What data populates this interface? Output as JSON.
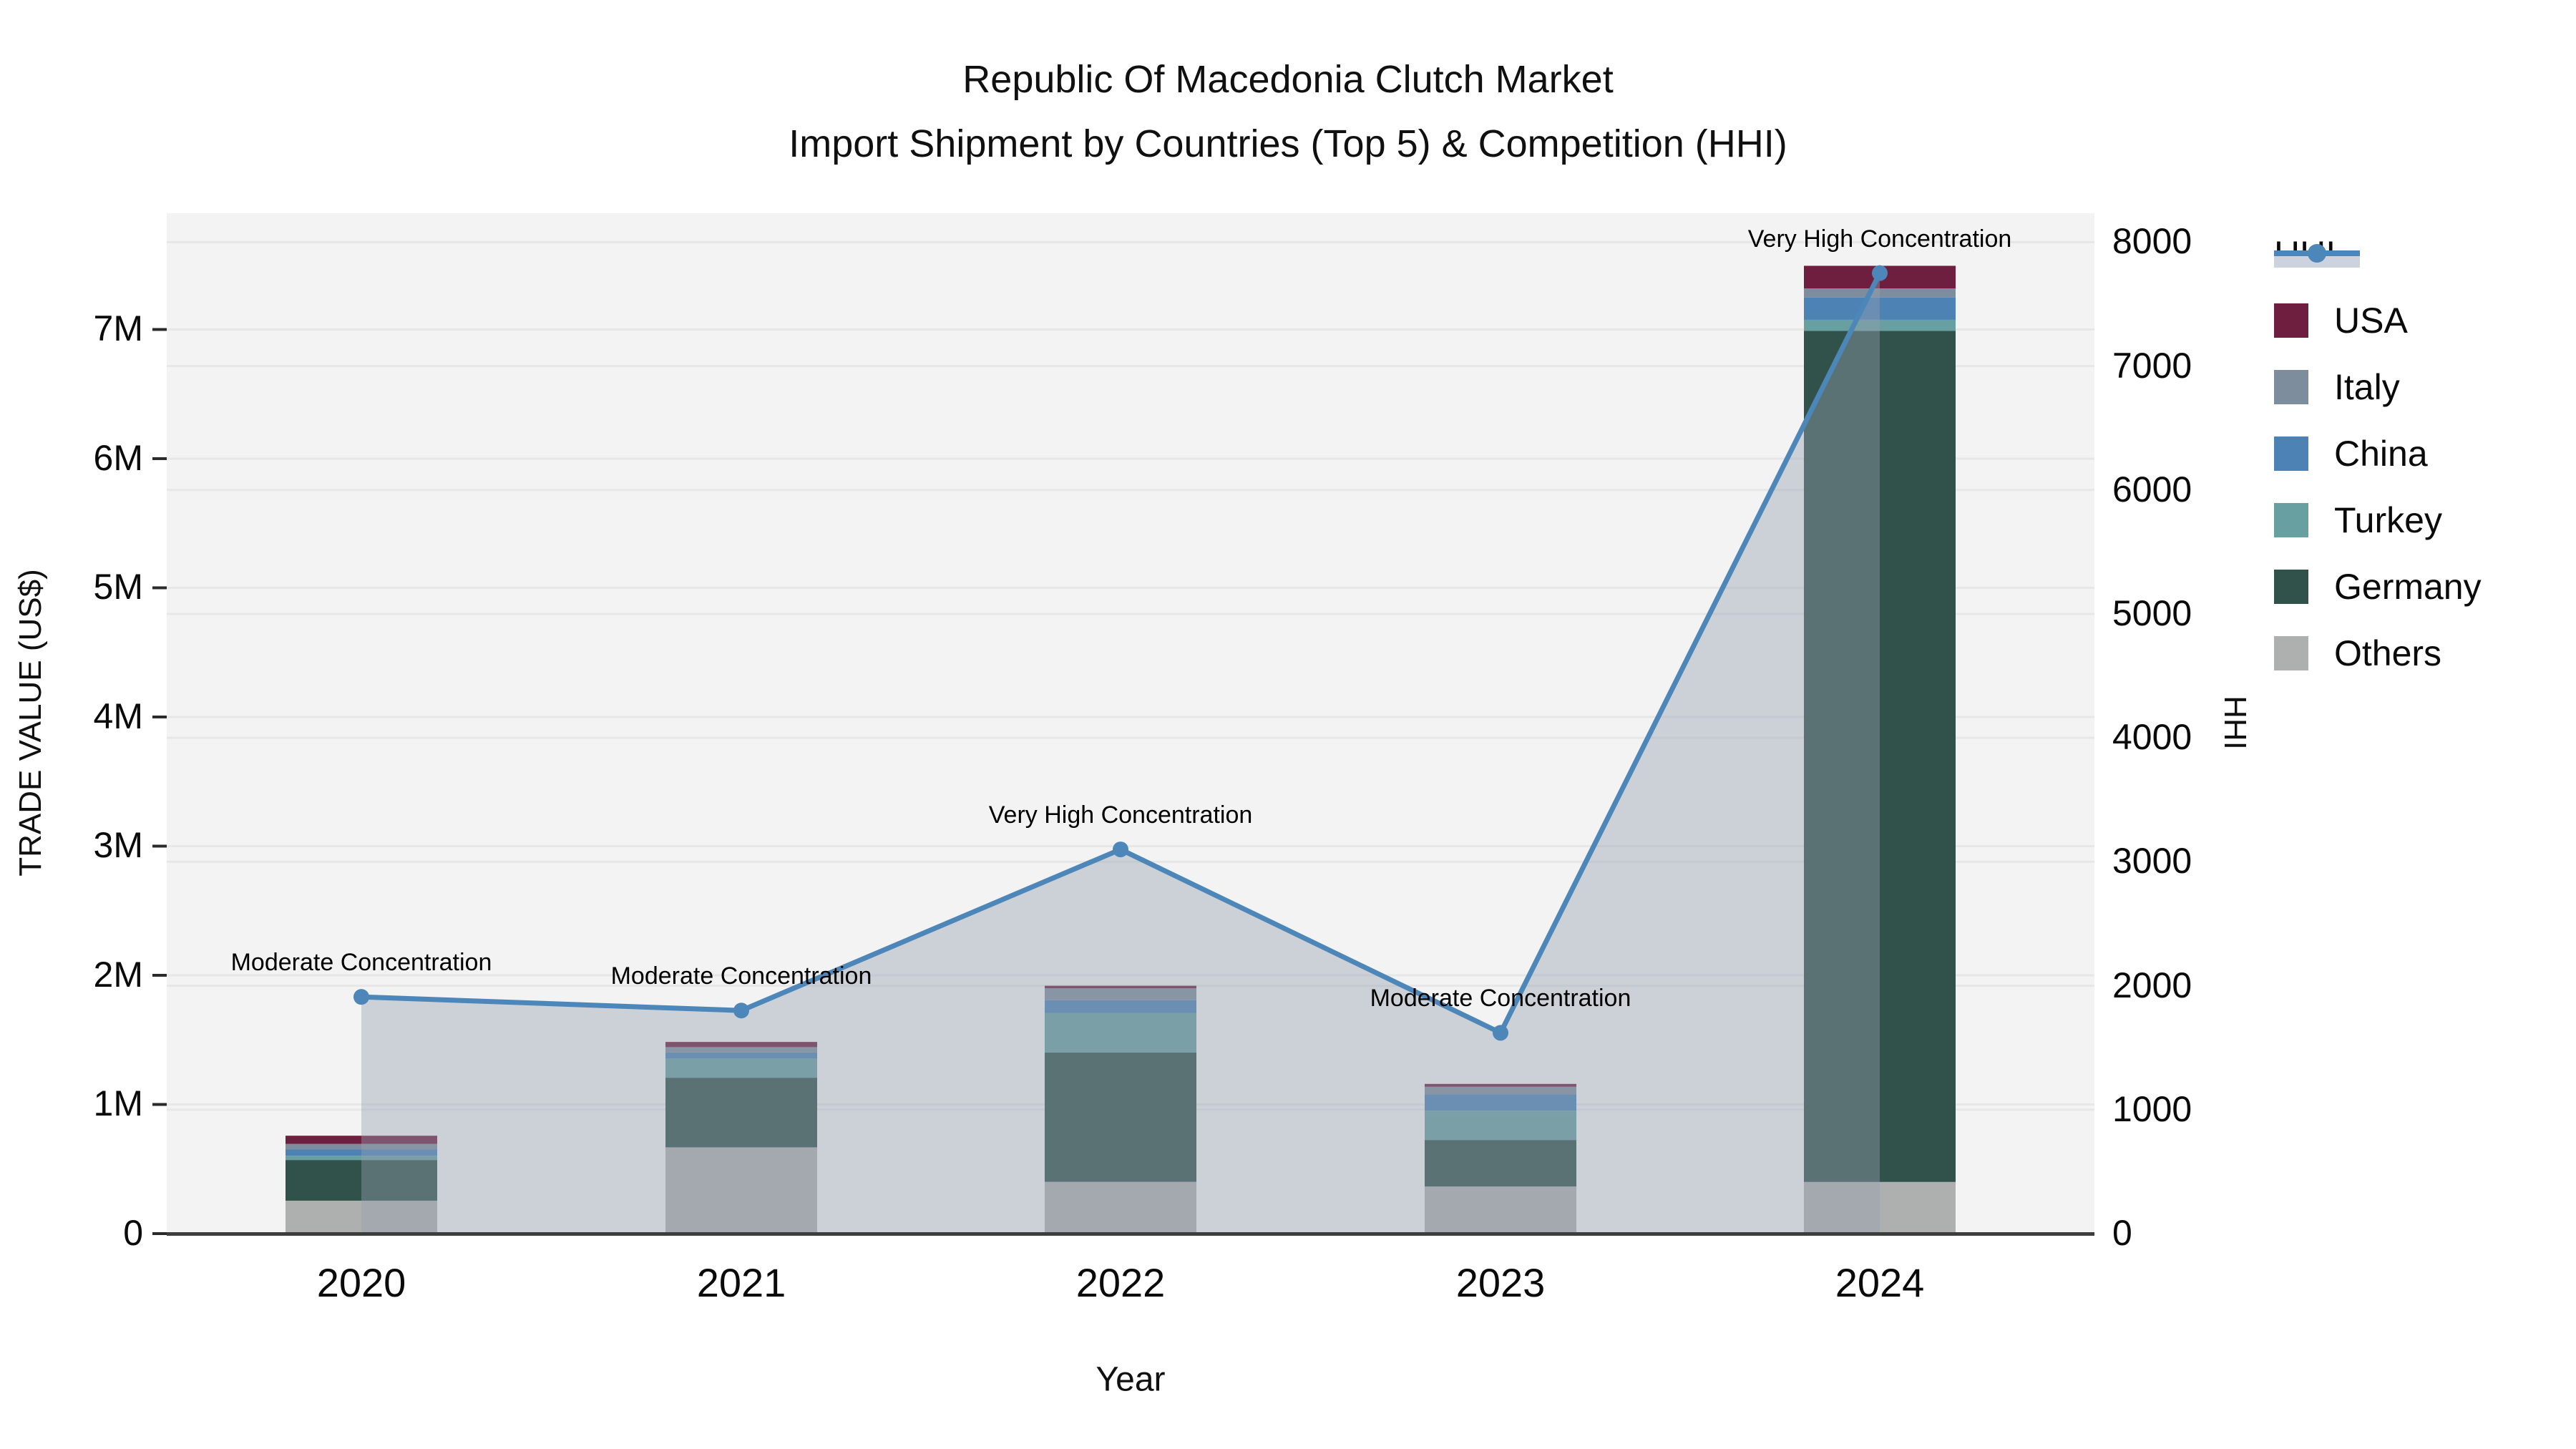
{
  "title": {
    "line1": "Republic Of Macedonia Clutch Market",
    "line2": "Import Shipment by Countries (Top 5) & Competition (HHI)"
  },
  "axes": {
    "y_left_label": "TRADE VALUE (US$)",
    "y_right_label": "HHI",
    "x_label": "Year",
    "y_left_ticks": [
      "0",
      "1M",
      "2M",
      "3M",
      "4M",
      "5M",
      "6M",
      "7M"
    ],
    "y_right_ticks": [
      "0",
      "1000",
      "2000",
      "3000",
      "4000",
      "5000",
      "6000",
      "7000",
      "8000"
    ]
  },
  "chart_data": {
    "type": "bar+line",
    "title": "Republic Of Macedonia Clutch Market",
    "subtitle": "Import Shipment by Countries (Top 5) & Competition (HHI)",
    "xlabel": "Year",
    "ylabel_left": "TRADE VALUE (US$)",
    "ylabel_right": "HHI",
    "categories": [
      "2020",
      "2021",
      "2022",
      "2023",
      "2024"
    ],
    "stack_order_bottom_to_top": [
      "Others",
      "Germany",
      "Turkey",
      "China",
      "Italy",
      "USA"
    ],
    "series": [
      {
        "name": "USA",
        "axis": "left",
        "values": [
          63000,
          40000,
          20000,
          22000,
          175000
        ]
      },
      {
        "name": "Italy",
        "axis": "left",
        "values": [
          44000,
          41000,
          92000,
          58000,
          70000
        ]
      },
      {
        "name": "China",
        "axis": "left",
        "values": [
          48000,
          48000,
          100000,
          127000,
          173000
        ]
      },
      {
        "name": "Turkey",
        "axis": "left",
        "values": [
          33000,
          148000,
          304000,
          227000,
          85000
        ]
      },
      {
        "name": "Germany",
        "axis": "left",
        "values": [
          315000,
          539000,
          1002000,
          360000,
          6590000
        ]
      },
      {
        "name": "Others",
        "axis": "left",
        "values": [
          255000,
          668000,
          401000,
          365000,
          400000
        ]
      }
    ],
    "line_series": {
      "name": "HHI",
      "axis": "right",
      "values": [
        1910,
        1800,
        3100,
        1620,
        7750
      ]
    },
    "annotations": [
      {
        "category": "2020",
        "text": "Moderate Concentration"
      },
      {
        "category": "2021",
        "text": "Moderate Concentration"
      },
      {
        "category": "2022",
        "text": "Very High Concentration"
      },
      {
        "category": "2023",
        "text": "Moderate Concentration"
      },
      {
        "category": "2024",
        "text": "Very High Concentration"
      }
    ],
    "y_left": {
      "range": [
        0,
        7900000
      ],
      "tick_values": [
        0,
        1000000,
        2000000,
        3000000,
        4000000,
        5000000,
        6000000,
        7000000
      ]
    },
    "y_right": {
      "range": [
        0,
        8233
      ],
      "tick_values": [
        0,
        1000,
        2000,
        3000,
        4000,
        5000,
        6000,
        7000,
        8000
      ]
    },
    "grid": true,
    "legend_position": "right"
  },
  "legend": {
    "items": [
      {
        "label": "HHI",
        "type": "line"
      },
      {
        "label": "USA",
        "type": "box"
      },
      {
        "label": "Italy",
        "type": "box"
      },
      {
        "label": "China",
        "type": "box"
      },
      {
        "label": "Turkey",
        "type": "box"
      },
      {
        "label": "Germany",
        "type": "box"
      },
      {
        "label": "Others",
        "type": "box"
      }
    ]
  },
  "colors": {
    "USA": "#6e1e3e",
    "Italy": "#7d8d9e",
    "China": "#4d82b5",
    "Turkey": "#689fa1",
    "Germany": "#31514b",
    "Others": "#aeb0af",
    "hhi_line": "#4d87b9",
    "hhi_area": "rgba(150,160,176,0.42)",
    "hhi_band": "#ccd3de",
    "plot_bg": "#f3f3f3",
    "grid": "#e7e7e7",
    "axis_line": "#3d3d3d",
    "tick_mark": "#2a2a2a"
  }
}
